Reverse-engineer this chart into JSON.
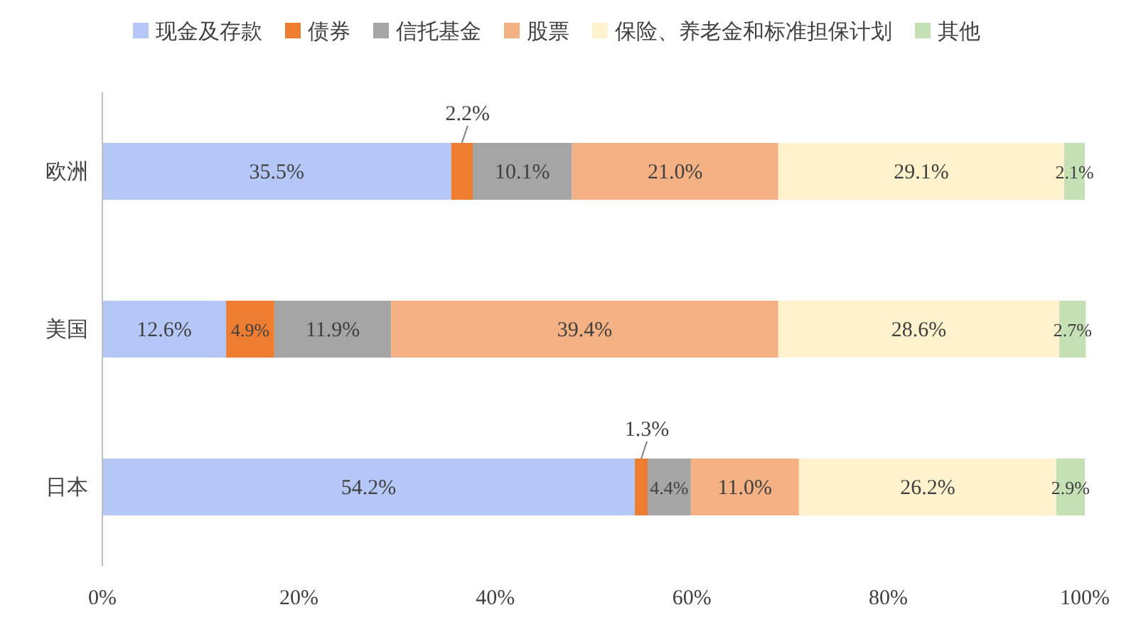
{
  "chart_data": {
    "type": "bar",
    "orientation": "horizontal",
    "stacked": true,
    "legend": "top",
    "grid": false,
    "categories": [
      "欧洲",
      "美国",
      "日本"
    ],
    "xlim": [
      0,
      100
    ],
    "xticks": [
      {
        "value": 0,
        "label": "0%"
      },
      {
        "value": 20,
        "label": "20%"
      },
      {
        "value": 40,
        "label": "40%"
      },
      {
        "value": 60,
        "label": "60%"
      },
      {
        "value": 80,
        "label": "80%"
      },
      {
        "value": 100,
        "label": "100%"
      }
    ],
    "series": [
      {
        "name": "现金及存款",
        "color": "#b4c7f7",
        "values": [
          35.5,
          12.6,
          54.2
        ],
        "value_labels": [
          "35.5%",
          "12.6%",
          "54.2%"
        ]
      },
      {
        "name": "债券",
        "color": "#ed7d31",
        "values": [
          2.2,
          4.9,
          1.3
        ],
        "value_labels": [
          "2.2%",
          "4.9%",
          "1.3%"
        ]
      },
      {
        "name": "信托基金",
        "color": "#a5a5a5",
        "values": [
          10.1,
          11.9,
          4.4
        ],
        "value_labels": [
          "10.1%",
          "11.9%",
          "4.4%"
        ]
      },
      {
        "name": "股票",
        "color": "#f4b183",
        "values": [
          21.0,
          39.4,
          11.0
        ],
        "value_labels": [
          "21.0%",
          "39.4%",
          "11.0%"
        ]
      },
      {
        "name": "保险、养老金和标准担保计划",
        "color": "#fff2cc",
        "values": [
          29.1,
          28.6,
          26.2
        ],
        "value_labels": [
          "29.1%",
          "28.6%",
          "26.2%"
        ]
      },
      {
        "name": "其他",
        "color": "#c5e0b4",
        "values": [
          2.1,
          2.7,
          2.9
        ],
        "value_labels": [
          "2.1%",
          "2.7%",
          "2.9%"
        ]
      }
    ]
  }
}
